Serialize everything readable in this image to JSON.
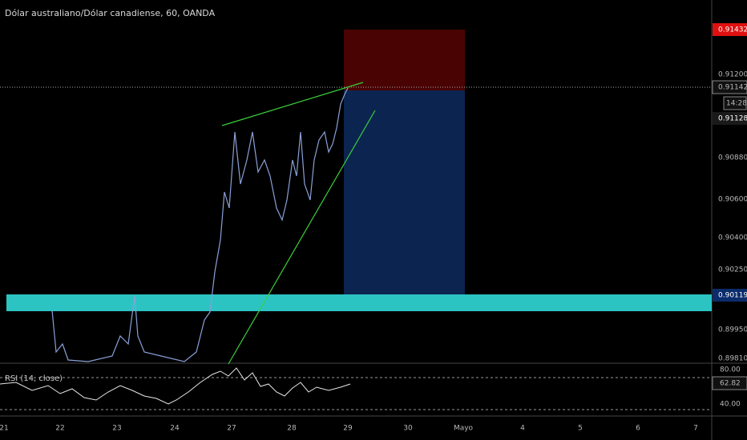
{
  "header": {
    "title": "Dólar australiano/Dólar canadiense, 60, OANDA"
  },
  "price_axis": {
    "labels": [
      "0.91200",
      "0.90880",
      "0.90600",
      "0.90400",
      "0.90250",
      "0.89950",
      "0.89810"
    ],
    "stop_label": "0.91432",
    "last_label": "0.91142",
    "countdown": "14:28",
    "entry_label": "0.91128",
    "zone_label": "0.90119"
  },
  "rsi": {
    "title": "RSI (14, close)",
    "upper": "80.00",
    "current": "62.82",
    "lower": "40.00"
  },
  "time_axis": {
    "labels": [
      "21",
      "22",
      "23",
      "24",
      "27",
      "28",
      "29",
      "30",
      "Mayo",
      "4",
      "5",
      "6",
      "7"
    ]
  }
}
